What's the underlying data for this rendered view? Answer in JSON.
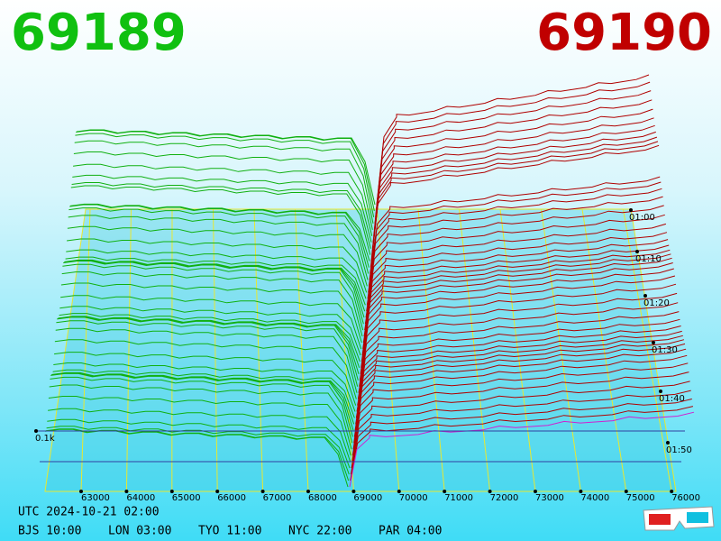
{
  "bid": "69189",
  "ask": "69190",
  "price_axis": [
    "63000",
    "64000",
    "65000",
    "66000",
    "67000",
    "68000",
    "69000",
    "70000",
    "71000",
    "72000",
    "73000",
    "74000",
    "75000",
    "76000"
  ],
  "time_axis": [
    "01:00",
    "01:10",
    "01:20",
    "01:30",
    "01:40",
    "01:50"
  ],
  "volume_label": "0.1k",
  "utc": "UTC 2024-10-21 02:00",
  "zones": [
    "BJS 10:00",
    "LON 03:00",
    "TYO 11:00",
    "NYC 22:00",
    "PAR 04:00"
  ]
}
